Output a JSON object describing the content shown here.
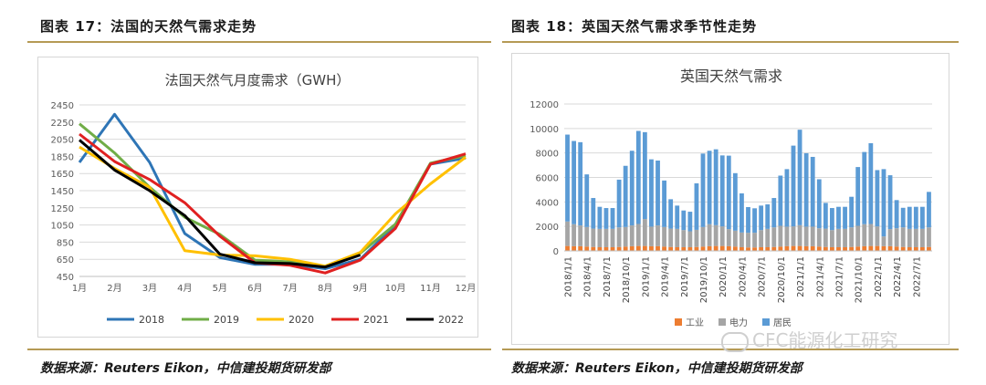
{
  "left": {
    "figure_title": "图表 17：法国的天然气需求走势",
    "source": "数据来源：Reuters Eikon，中信建投期货研发部"
  },
  "right": {
    "figure_title": "图表 18：英国天然气需求季节性走势",
    "source": "数据来源：Reuters Eikon，中信建投期货研发部"
  },
  "watermark": "CFC能源化工研究",
  "colors": {
    "rule": "#b59a55",
    "s2018": "#2e75b6",
    "s2019": "#70ad47",
    "s2020": "#ffc000",
    "s2021": "#e02020",
    "s2022": "#000000",
    "industry": "#ed7d31",
    "power": "#a5a5a5",
    "residential": "#5b9bd5"
  },
  "chart_data": [
    {
      "type": "line",
      "title": "法国天然气月度需求（GWH）",
      "categories": [
        "1月",
        "2月",
        "3月",
        "4月",
        "5月",
        "6月",
        "7月",
        "8月",
        "9月",
        "10月",
        "11月",
        "12月"
      ],
      "yticks": [
        450,
        650,
        850,
        1050,
        1250,
        1450,
        1650,
        1850,
        2050,
        2250,
        2450
      ],
      "ylim": [
        450,
        2450
      ],
      "grid": true,
      "legend_position": "bottom",
      "series": [
        {
          "name": "2018",
          "values": [
            1780,
            2340,
            1780,
            950,
            670,
            590,
            590,
            540,
            650,
            1050,
            1760,
            1830
          ]
        },
        {
          "name": "2019",
          "values": [
            2230,
            1890,
            1490,
            1140,
            940,
            640,
            620,
            560,
            720,
            1060,
            1770,
            1860
          ]
        },
        {
          "name": "2020",
          "values": [
            1960,
            1710,
            1490,
            750,
            700,
            690,
            650,
            570,
            730,
            1180,
            1530,
            1840
          ]
        },
        {
          "name": "2021",
          "values": [
            2110,
            1790,
            1580,
            1310,
            920,
            610,
            580,
            490,
            640,
            1010,
            1760,
            1880
          ]
        },
        {
          "name": "2022",
          "values": [
            2040,
            1690,
            1450,
            1160,
            710,
            610,
            600,
            560,
            700,
            null,
            null,
            null
          ]
        }
      ]
    },
    {
      "type": "bar",
      "stacked": true,
      "title": "英国天然气需求",
      "yticks": [
        0,
        2000,
        4000,
        6000,
        8000,
        10000,
        12000
      ],
      "ylim": [
        0,
        12000
      ],
      "grid": true,
      "legend_position": "bottom",
      "x_tick_labels": [
        "2018/1/1",
        "2018/4/1",
        "2018/7/1",
        "2018/10/1",
        "2019/1/1",
        "2019/4/1",
        "2019/7/1",
        "2019/10/1",
        "2020/1/1",
        "2020/4/1",
        "2020/7/1",
        "2020/10/1",
        "2021/1/1",
        "2021/4/1",
        "2021/7/1",
        "2021/10/1",
        "2022/1/1",
        "2022/4/1",
        "2022/7/1"
      ],
      "x": [
        "2018-01",
        "2018-02",
        "2018-03",
        "2018-04",
        "2018-05",
        "2018-06",
        "2018-07",
        "2018-08",
        "2018-09",
        "2018-10",
        "2018-11",
        "2018-12",
        "2019-01",
        "2019-02",
        "2019-03",
        "2019-04",
        "2019-05",
        "2019-06",
        "2019-07",
        "2019-08",
        "2019-09",
        "2019-10",
        "2019-11",
        "2019-12",
        "2020-01",
        "2020-02",
        "2020-03",
        "2020-04",
        "2020-05",
        "2020-06",
        "2020-07",
        "2020-08",
        "2020-09",
        "2020-10",
        "2020-11",
        "2020-12",
        "2021-01",
        "2021-02",
        "2021-03",
        "2021-04",
        "2021-05",
        "2021-06",
        "2021-07",
        "2021-08",
        "2021-09",
        "2021-10",
        "2021-11",
        "2021-12",
        "2022-01",
        "2022-02",
        "2022-03",
        "2022-04",
        "2022-05",
        "2022-06",
        "2022-07",
        "2022-08",
        "2022-09"
      ],
      "series": [
        {
          "name": "工业",
          "values": [
            400,
            380,
            380,
            350,
            320,
            300,
            300,
            300,
            320,
            350,
            380,
            400,
            400,
            380,
            380,
            350,
            320,
            300,
            300,
            300,
            320,
            350,
            380,
            400,
            400,
            380,
            350,
            300,
            280,
            280,
            300,
            300,
            320,
            350,
            380,
            400,
            400,
            380,
            380,
            350,
            320,
            300,
            300,
            300,
            320,
            350,
            380,
            400,
            400,
            380,
            380,
            350,
            320,
            300,
            300,
            300,
            320
          ]
        },
        {
          "name": "电力",
          "values": [
            2000,
            1800,
            1700,
            1600,
            1500,
            1500,
            1500,
            1500,
            1600,
            1600,
            1700,
            1800,
            2200,
            1600,
            1700,
            1600,
            1500,
            1500,
            1400,
            1300,
            1400,
            1600,
            1800,
            1700,
            1600,
            1400,
            1300,
            1200,
            1200,
            1200,
            1400,
            1500,
            1600,
            1700,
            1600,
            1600,
            1700,
            1600,
            1600,
            1500,
            1500,
            1400,
            1500,
            1500,
            1600,
            1700,
            1800,
            1800,
            1600,
            800,
            1400,
            1500,
            1600,
            1500,
            1500,
            1500,
            1600
          ]
        },
        {
          "name": "居民",
          "values": [
            7100,
            6800,
            6800,
            4300,
            2500,
            1800,
            1700,
            1700,
            3900,
            5000,
            6100,
            7600,
            7100,
            5500,
            5300,
            3800,
            2400,
            1900,
            1600,
            1600,
            3800,
            6000,
            6000,
            6200,
            5800,
            6000,
            4700,
            3200,
            2100,
            2000,
            2000,
            2000,
            2400,
            4100,
            4700,
            6600,
            7800,
            6000,
            5700,
            4000,
            2100,
            1800,
            1800,
            1800,
            2500,
            4800,
            5900,
            6600,
            4600,
            5500,
            4400,
            2300,
            1600,
            1800,
            1800,
            1800,
            2900
          ]
        }
      ]
    }
  ]
}
